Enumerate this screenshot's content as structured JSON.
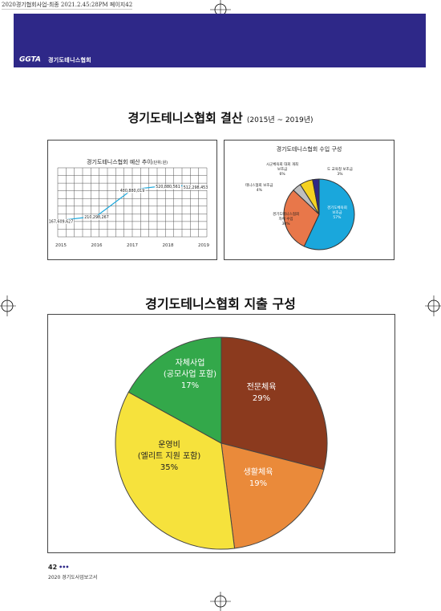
{
  "print_slug": "2020경기협회사업-최종 2021.2.45:28PM 페이지42",
  "header": {
    "logo_text": "GGTA",
    "brand_name": "경기도테니스협회"
  },
  "page_title": {
    "main": "경기도테니스협회 결산",
    "period": "(2015년 ~ 2019년)"
  },
  "budget_chart": {
    "title": "경기도테니스협회 예산 추이",
    "unit": "(단위:원)",
    "chart_data": {
      "type": "line",
      "categories": [
        "2015",
        "2016",
        "2017",
        "2018",
        "2019"
      ],
      "values": [
        167609627,
        210298267,
        480880019,
        520880561,
        512298453
      ],
      "value_labels": [
        "167,609,627",
        "210,298,267",
        "480,880,019",
        "520,880,561",
        "512,298,453"
      ],
      "xlabel": "",
      "ylabel": "",
      "grid": true
    }
  },
  "income_chart": {
    "title": "경기도테니스협회 수입 구성",
    "chart_data": {
      "type": "pie",
      "slices": [
        {
          "label": "경기도체육회 보조금",
          "value": 57,
          "display": "57%",
          "color": "#1aa7dc"
        },
        {
          "label": "경기도테니스협회 자체 수입",
          "value": 30,
          "display": "30%",
          "color": "#e8774a"
        },
        {
          "label": "테니스협회 보조금",
          "value": 4,
          "display": "4%",
          "color": "#bfbfbf"
        },
        {
          "label": "시군체육회 대회 개최 보조금",
          "value": 6,
          "display": "6%",
          "color": "#f4d221"
        },
        {
          "label": "도 교육청 보조금",
          "value": 3,
          "display": "3%",
          "color": "#2e2888"
        }
      ]
    }
  },
  "expense_section_title": "경기도테니스협회 지출 구성",
  "expense_chart": {
    "chart_data": {
      "type": "pie",
      "slices": [
        {
          "label": "전문체육",
          "value": 29,
          "display": "29%",
          "color": "#8b3a1e"
        },
        {
          "label": "생활체육",
          "value": 19,
          "display": "19%",
          "color": "#ea8a3a"
        },
        {
          "label": "운영비 (엘리트 지원 포함)",
          "value": 35,
          "display": "35%",
          "color": "#f6e23c"
        },
        {
          "label": "자체사업 (공모사업 포함)",
          "value": 17,
          "display": "17%",
          "color": "#33a84a"
        }
      ]
    },
    "labels": {
      "pro": {
        "line1": "전문체육",
        "pct": "29%"
      },
      "life": {
        "line1": "생활체육",
        "pct": "19%"
      },
      "ops": {
        "line1": "운영비",
        "line2": "(엘리트 지원 포함)",
        "pct": "35%"
      },
      "own": {
        "line1": "자체사업",
        "line2": "(공모사업 포함)",
        "pct": "17%"
      }
    }
  },
  "footer": {
    "page_number": "42",
    "page_dots": "•••",
    "report_name": "2020 경기도사업보고서"
  }
}
